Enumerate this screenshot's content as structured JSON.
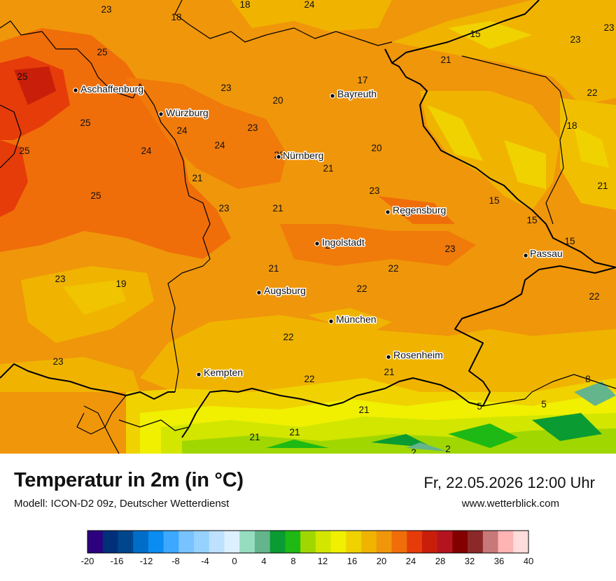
{
  "title": "Temperatur in 2m (in °C)",
  "model": "Modell: ICON-D2 09z, Deutscher Wetterdienst",
  "datetime": "Fr, 22.05.2026 12:00 Uhr",
  "website": "www.wetterblick.com",
  "cities": [
    {
      "name": "Aschaffenburg"
    },
    {
      "name": "Würzburg"
    },
    {
      "name": "Bayreuth"
    },
    {
      "name": "Nürnberg"
    },
    {
      "name": "Regensburg"
    },
    {
      "name": "Ingolstadt"
    },
    {
      "name": "Passau"
    },
    {
      "name": "Augsburg"
    },
    {
      "name": "München"
    },
    {
      "name": "Rosenheim"
    },
    {
      "name": "Kempten"
    }
  ],
  "temperature_labels": [
    "23",
    "18",
    "18",
    "24",
    "15",
    "23",
    "23",
    "25",
    "25",
    "24",
    "23",
    "17",
    "21",
    "20",
    "22",
    "25",
    "24",
    "23",
    "18",
    "25",
    "24",
    "24",
    "23",
    "21",
    "20",
    "23",
    "21",
    "25",
    "23",
    "21",
    "15",
    "23",
    "15",
    "23",
    "15",
    "21",
    "23",
    "22",
    "19",
    "22",
    "21",
    "22",
    "22",
    "23",
    "23",
    "21",
    "22",
    "21",
    "21",
    "21",
    "2",
    "8",
    "5",
    "5",
    "2"
  ],
  "colorbar": {
    "ticks": [
      "-20",
      "-16",
      "-12",
      "-8",
      "-4",
      "0",
      "4",
      "8",
      "12",
      "16",
      "20",
      "24",
      "28",
      "32",
      "36",
      "40"
    ],
    "colors": [
      "#2d0080",
      "#00307a",
      "#00468c",
      "#006ec8",
      "#0a8cf0",
      "#3ca8ff",
      "#78c3ff",
      "#96d2ff",
      "#bee1ff",
      "#dcf0ff",
      "#96dcbe",
      "#64b48c",
      "#0a9b32",
      "#1eb914",
      "#a0d700",
      "#d2e600",
      "#f0f000",
      "#f0d200",
      "#f0b400",
      "#f0960a",
      "#f06e0a",
      "#e63c0a",
      "#c81e0a",
      "#b4141e",
      "#820000",
      "#8c2828",
      "#c87878",
      "#ffb4b4",
      "#ffdcdc"
    ]
  }
}
